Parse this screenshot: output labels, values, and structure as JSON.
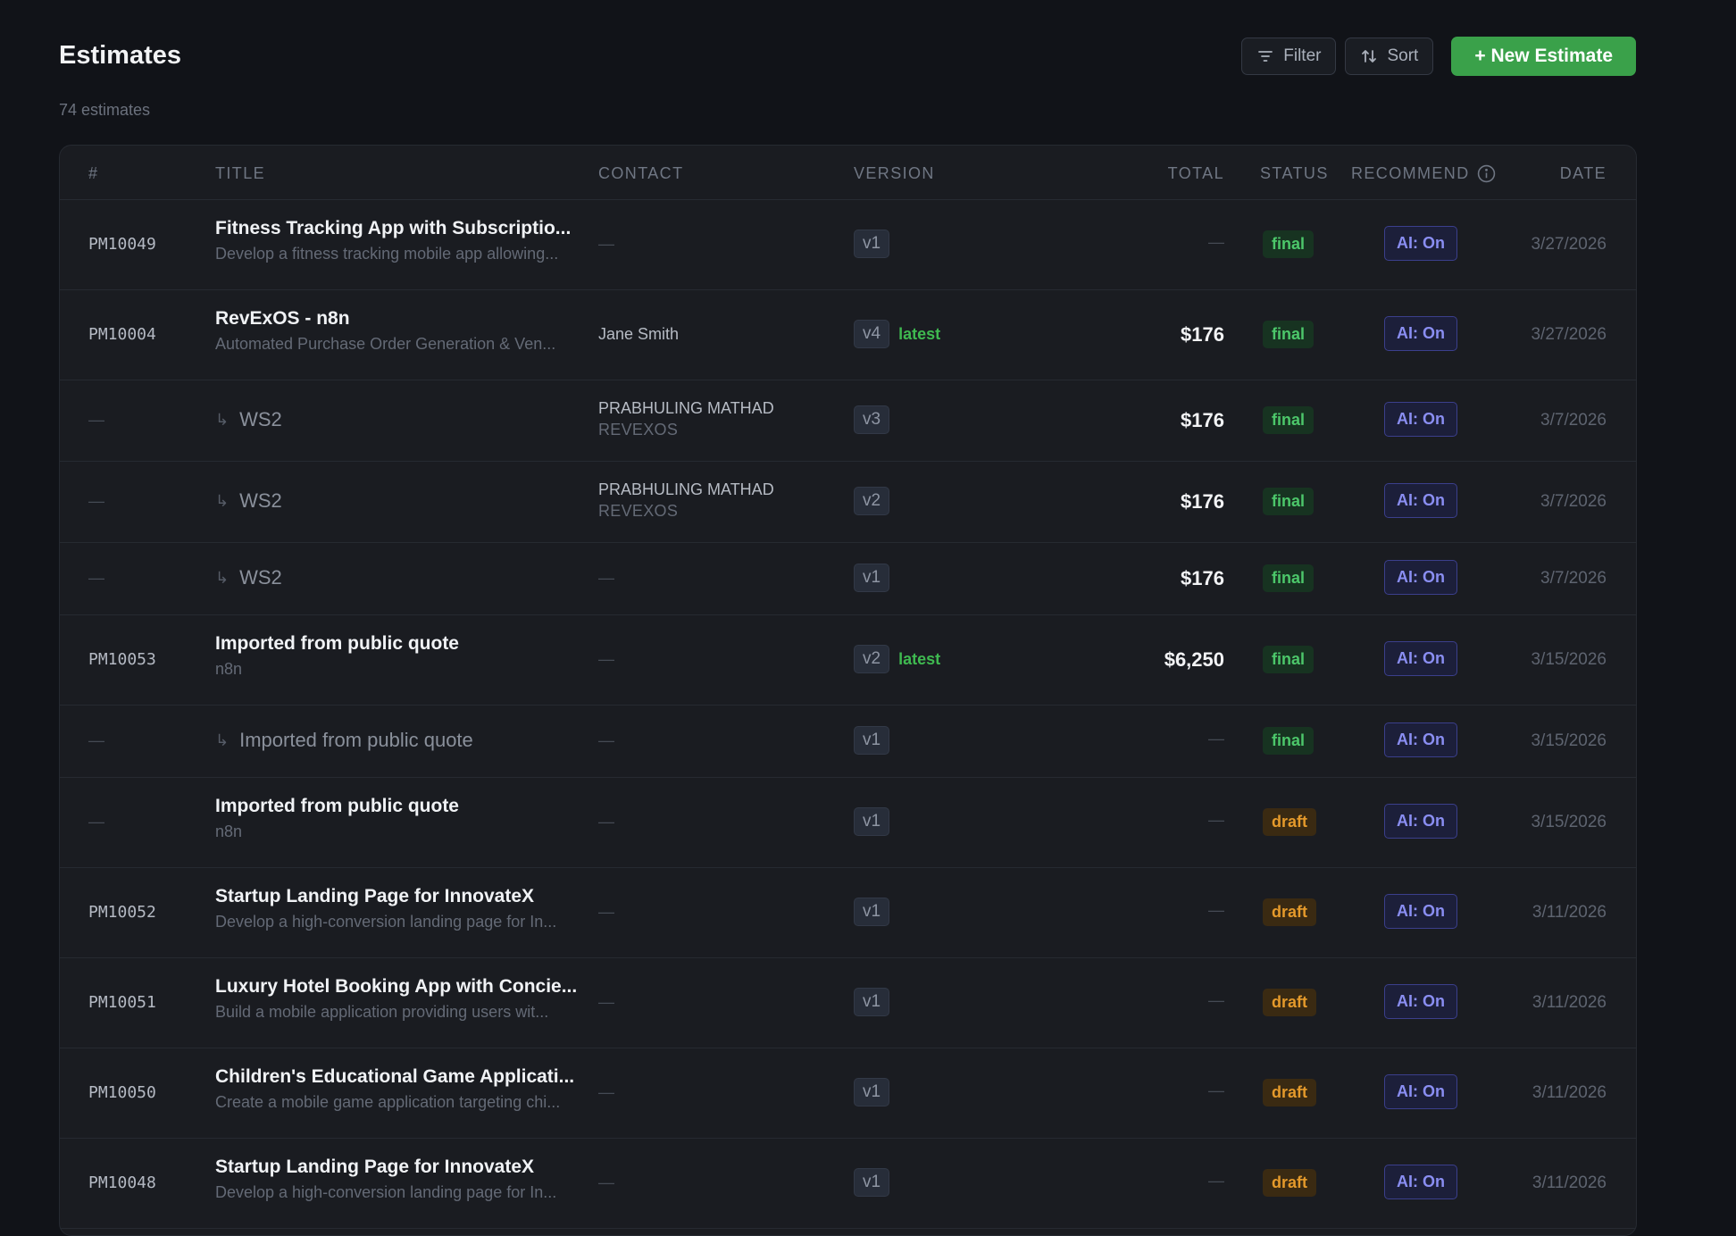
{
  "header": {
    "title": "Estimates",
    "subtitle": "74 estimates",
    "filter_label": "Filter",
    "sort_label": "Sort",
    "new_label": "+ New Estimate"
  },
  "columns": {
    "num": "#",
    "title": "TITLE",
    "contact": "CONTACT",
    "version": "VERSION",
    "total": "TOTAL",
    "status": "STATUS",
    "recommend": "RECOMMEND",
    "date": "DATE"
  },
  "rows": [
    {
      "num": "PM10049",
      "kind": "parent",
      "title": "Fitness Tracking App with Subscriptio...",
      "subtitle": "Develop a fitness tracking mobile app allowing...",
      "contact_name": "—",
      "contact_company": "",
      "version": "v1",
      "latest": "",
      "total": "—",
      "status": "final",
      "ai": "AI: On",
      "date": "3/27/2026"
    },
    {
      "num": "PM10004",
      "kind": "parent",
      "title": "RevExOS - n8n",
      "subtitle": "Automated Purchase Order Generation & Ven...",
      "contact_name": "Jane Smith",
      "contact_company": "",
      "version": "v4",
      "latest": "latest",
      "total": "$176",
      "status": "final",
      "ai": "AI: On",
      "date": "3/27/2026"
    },
    {
      "num": "—",
      "kind": "child",
      "title": "WS2",
      "subtitle": "",
      "contact_name": "PRABHULING MATHAD",
      "contact_company": "REVEXOS",
      "version": "v3",
      "latest": "",
      "total": "$176",
      "status": "final",
      "ai": "AI: On",
      "date": "3/7/2026"
    },
    {
      "num": "—",
      "kind": "child",
      "title": "WS2",
      "subtitle": "",
      "contact_name": "PRABHULING MATHAD",
      "contact_company": "REVEXOS",
      "version": "v2",
      "latest": "",
      "total": "$176",
      "status": "final",
      "ai": "AI: On",
      "date": "3/7/2026"
    },
    {
      "num": "—",
      "kind": "child",
      "title": "WS2",
      "subtitle": "",
      "contact_name": "—",
      "contact_company": "",
      "version": "v1",
      "latest": "",
      "total": "$176",
      "status": "final",
      "ai": "AI: On",
      "date": "3/7/2026"
    },
    {
      "num": "PM10053",
      "kind": "parent",
      "title": "Imported from public quote",
      "subtitle": "n8n",
      "contact_name": "—",
      "contact_company": "",
      "version": "v2",
      "latest": "latest",
      "total": "$6,250",
      "status": "final",
      "ai": "AI: On",
      "date": "3/15/2026"
    },
    {
      "num": "—",
      "kind": "child",
      "title": "Imported from public quote",
      "subtitle": "",
      "contact_name": "—",
      "contact_company": "",
      "version": "v1",
      "latest": "",
      "total": "—",
      "status": "final",
      "ai": "AI: On",
      "date": "3/15/2026"
    },
    {
      "num": "—",
      "kind": "parent",
      "title": "Imported from public quote",
      "subtitle": "n8n",
      "contact_name": "—",
      "contact_company": "",
      "version": "v1",
      "latest": "",
      "total": "—",
      "status": "draft",
      "ai": "AI: On",
      "date": "3/15/2026"
    },
    {
      "num": "PM10052",
      "kind": "parent",
      "title": "Startup Landing Page for InnovateX",
      "subtitle": "Develop a high-conversion landing page for In...",
      "contact_name": "—",
      "contact_company": "",
      "version": "v1",
      "latest": "",
      "total": "—",
      "status": "draft",
      "ai": "AI: On",
      "date": "3/11/2026"
    },
    {
      "num": "PM10051",
      "kind": "parent",
      "title": "Luxury Hotel Booking App with Concie...",
      "subtitle": "Build a mobile application providing users wit...",
      "contact_name": "—",
      "contact_company": "",
      "version": "v1",
      "latest": "",
      "total": "—",
      "status": "draft",
      "ai": "AI: On",
      "date": "3/11/2026"
    },
    {
      "num": "PM10050",
      "kind": "parent",
      "title": "Children's Educational Game Applicati...",
      "subtitle": "Create a mobile game application targeting chi...",
      "contact_name": "—",
      "contact_company": "",
      "version": "v1",
      "latest": "",
      "total": "—",
      "status": "draft",
      "ai": "AI: On",
      "date": "3/11/2026"
    },
    {
      "num": "PM10048",
      "kind": "parent",
      "title": "Startup Landing Page for InnovateX",
      "subtitle": "Develop a high-conversion landing page for In...",
      "contact_name": "—",
      "contact_company": "",
      "version": "v1",
      "latest": "",
      "total": "—",
      "status": "draft",
      "ai": "AI: On",
      "date": "3/11/2026"
    }
  ],
  "colors": {
    "background": "#111318",
    "card": "#1a1c21",
    "accent_green": "#3aa14a",
    "final": "#4cc76a",
    "draft": "#e59a2b",
    "ai": "#8a8ef2"
  },
  "icons": {
    "filter": "filter-icon",
    "sort": "sort-icon",
    "info": "info-icon",
    "child_arrow": "subdirectory-arrow-icon"
  }
}
